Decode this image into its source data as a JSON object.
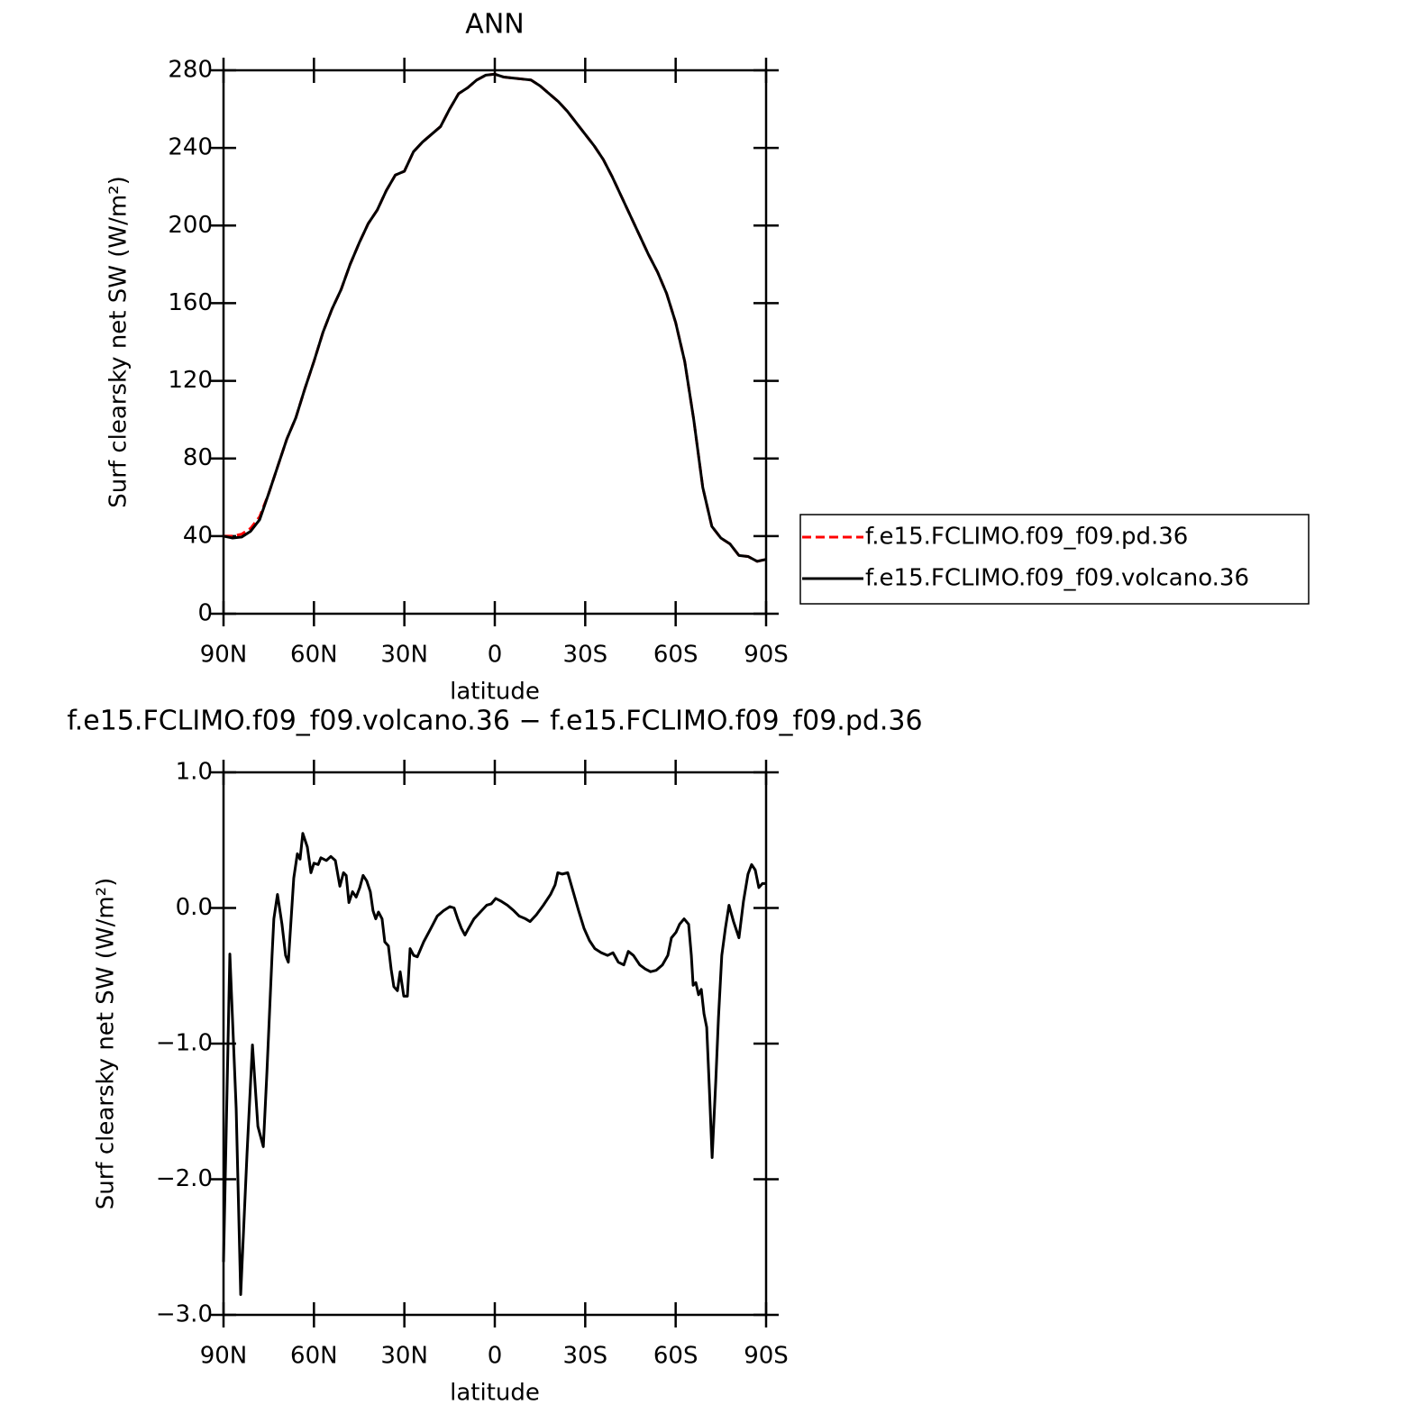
{
  "chart_data": [
    {
      "type": "line",
      "title": "ANN",
      "ylabel": "Surf clearsky net SW (W/m²)",
      "xlabel": "latitude",
      "xlim": [
        90,
        -90
      ],
      "xticks": [
        {
          "value": 90,
          "label": "90N"
        },
        {
          "value": 60,
          "label": "60N"
        },
        {
          "value": 30,
          "label": "30N"
        },
        0,
        {
          "value": -30,
          "label": "30S"
        },
        {
          "value": -60,
          "label": "60S"
        },
        {
          "value": -90,
          "label": "90S"
        }
      ],
      "ylim": [
        0,
        280
      ],
      "yticks": [
        0,
        40,
        80,
        120,
        160,
        200,
        240,
        280
      ],
      "legend": "right",
      "x": [
        90,
        87,
        84,
        81,
        78,
        75,
        72,
        69,
        66,
        63,
        60,
        57,
        54,
        51,
        48,
        45,
        42,
        39,
        36,
        33,
        30,
        27,
        24,
        21,
        18,
        15,
        12,
        9,
        6,
        3,
        0,
        -3,
        -6,
        -9,
        -12,
        -15,
        -18,
        -21,
        -24,
        -27,
        -30,
        -33,
        -36,
        -39,
        -42,
        -45,
        -48,
        -51,
        -54,
        -57,
        -60,
        -63,
        -66,
        -69,
        -72,
        -75,
        -78,
        -81,
        -84,
        -87,
        -90
      ],
      "series": [
        {
          "name": "f.e15.FCLIMO.f09_f09.pd.36",
          "color": "#ff0000",
          "dash": true,
          "values": [
            40,
            40,
            41,
            44,
            50,
            62,
            76,
            90,
            101,
            116,
            130,
            145,
            157,
            167,
            180,
            191,
            201,
            208,
            218,
            226,
            228,
            238,
            243,
            247,
            251,
            260,
            268,
            271,
            275,
            277.5,
            278,
            276.5,
            276,
            275.5,
            275,
            272,
            268,
            264,
            259,
            253,
            247,
            241,
            234,
            225,
            215,
            205,
            195,
            185,
            176,
            165,
            150,
            130,
            100,
            65,
            45,
            39,
            36,
            30,
            29.5,
            27,
            28
          ]
        },
        {
          "name": "f.e15.FCLIMO.f09_f09.volcano.36",
          "color": "#000000",
          "dash": false,
          "values": [
            40,
            39,
            39.5,
            42.5,
            48.5,
            62,
            76,
            90,
            101,
            116,
            130,
            145,
            157,
            167,
            180,
            191,
            201,
            208,
            218,
            226,
            228,
            238,
            243,
            247,
            251,
            260,
            268,
            271,
            275,
            277.5,
            278,
            276.5,
            276,
            275.5,
            275,
            272,
            268,
            264,
            259,
            253,
            247,
            241,
            234,
            225,
            215,
            205,
            195,
            185,
            176,
            165,
            150,
            130,
            100,
            65,
            45,
            39,
            36,
            30,
            29.5,
            27,
            28
          ]
        }
      ]
    },
    {
      "type": "line",
      "title": "f.e15.FCLIMO.f09_f09.volcano.36 − f.e15.FCLIMO.f09_f09.pd.36",
      "ylabel": "Surf clearsky net SW (W/m²)",
      "xlabel": "latitude",
      "xlim": [
        90,
        -90
      ],
      "xticks": [
        {
          "value": 90,
          "label": "90N"
        },
        {
          "value": 60,
          "label": "60N"
        },
        {
          "value": 30,
          "label": "30N"
        },
        0,
        {
          "value": -30,
          "label": "30S"
        },
        {
          "value": -60,
          "label": "60S"
        },
        {
          "value": -90,
          "label": "90S"
        }
      ],
      "ylim": [
        -3,
        1
      ],
      "yticks": [
        {
          "value": -3,
          "label": "−3.0"
        },
        {
          "value": -2,
          "label": "−2.0"
        },
        {
          "value": -1,
          "label": "−1.0"
        },
        {
          "value": 0,
          "label": "0.0"
        },
        {
          "value": 1,
          "label": "1.0"
        }
      ],
      "color": "#000000",
      "x": [
        90.0,
        87.9,
        85.8,
        84.3,
        82.2,
        80.4,
        78.6,
        76.8,
        75.6,
        73.9,
        73.3,
        72.1,
        70.6,
        69.4,
        68.5,
        66.7,
        65.5,
        64.6,
        63.7,
        62.2,
        61.0,
        60.0,
        58.6,
        57.7,
        55.9,
        54.4,
        52.9,
        51.4,
        50.2,
        49.3,
        48.4,
        47.2,
        46.0,
        44.8,
        43.7,
        42.5,
        41.3,
        40.4,
        39.5,
        38.6,
        37.4,
        36.5,
        35.3,
        34.4,
        33.5,
        32.3,
        31.4,
        30.2,
        29.0,
        28.1,
        26.9,
        25.7,
        23.6,
        21.2,
        19.1,
        17.0,
        14.9,
        13.5,
        12.3,
        11.1,
        9.9,
        8.7,
        6.9,
        4.8,
        2.7,
        1.2,
        -0.3,
        -2.1,
        -4.2,
        -6.3,
        -8.1,
        -10.2,
        -11.7,
        -13.8,
        -16.1,
        -18.5,
        -20.0,
        -20.9,
        -22.4,
        -24.2,
        -26.0,
        -27.8,
        -29.6,
        -31.4,
        -33.2,
        -35.3,
        -37.4,
        -39.2,
        -41.0,
        -42.8,
        -44.3,
        -46.0,
        -48.1,
        -49.9,
        -51.7,
        -53.5,
        -55.6,
        -57.4,
        -58.6,
        -60.1,
        -61.3,
        -62.8,
        -64.3,
        -65.2,
        -65.8,
        -66.7,
        -67.6,
        -68.5,
        -69.4,
        -70.3,
        -71.2,
        -72.1,
        -73.3,
        -74.2,
        -75.3,
        -76.5,
        -77.7,
        -79.2,
        -81.0,
        -82.5,
        -84.0,
        -85.2,
        -86.4,
        -87.6,
        -88.8,
        -90.0
      ],
      "values": [
        -2.61,
        -0.34,
        -1.48,
        -2.85,
        -1.81,
        -1.01,
        -1.61,
        -1.76,
        -1.21,
        -0.35,
        -0.08,
        0.1,
        -0.12,
        -0.35,
        -0.4,
        0.22,
        0.4,
        0.36,
        0.55,
        0.45,
        0.26,
        0.33,
        0.32,
        0.37,
        0.35,
        0.38,
        0.35,
        0.16,
        0.26,
        0.24,
        0.04,
        0.12,
        0.08,
        0.15,
        0.24,
        0.2,
        0.12,
        -0.02,
        -0.08,
        -0.03,
        -0.08,
        -0.25,
        -0.28,
        -0.45,
        -0.58,
        -0.61,
        -0.47,
        -0.65,
        -0.65,
        -0.3,
        -0.35,
        -0.36,
        -0.25,
        -0.15,
        -0.06,
        -0.02,
        0.01,
        0.0,
        -0.08,
        -0.15,
        -0.2,
        -0.15,
        -0.08,
        -0.03,
        0.02,
        0.03,
        0.07,
        0.05,
        0.02,
        -0.02,
        -0.06,
        -0.08,
        -0.1,
        -0.05,
        0.02,
        0.1,
        0.17,
        0.26,
        0.25,
        0.26,
        0.12,
        -0.02,
        -0.15,
        -0.24,
        -0.3,
        -0.33,
        -0.35,
        -0.33,
        -0.4,
        -0.42,
        -0.32,
        -0.35,
        -0.42,
        -0.45,
        -0.47,
        -0.46,
        -0.42,
        -0.35,
        -0.22,
        -0.18,
        -0.12,
        -0.08,
        -0.12,
        -0.35,
        -0.57,
        -0.55,
        -0.64,
        -0.6,
        -0.78,
        -0.88,
        -1.34,
        -1.84,
        -1.28,
        -0.81,
        -0.35,
        -0.15,
        0.02,
        -0.1,
        -0.22,
        0.05,
        0.25,
        0.32,
        0.28,
        0.15,
        0.18,
        0.18
      ]
    }
  ]
}
